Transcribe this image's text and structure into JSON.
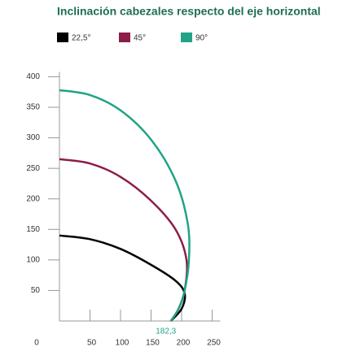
{
  "chart_data": {
    "type": "line",
    "title": "Inclinación cabezales respecto del eje horizontal",
    "series": [
      {
        "name": "22,5°",
        "color": "#000000",
        "x": [
          0,
          50,
          100,
          150,
          190,
          205,
          200,
          182.3
        ],
        "values": [
          140,
          134,
          118,
          92,
          66,
          45,
          20,
          0
        ]
      },
      {
        "name": "45°",
        "color": "#8c1d4b",
        "x": [
          0,
          50,
          100,
          150,
          190,
          208,
          205,
          195,
          182.3
        ],
        "values": [
          265,
          258,
          236,
          197,
          150,
          100,
          50,
          20,
          0
        ]
      },
      {
        "name": "90°",
        "color": "#20a386",
        "x": [
          0,
          50,
          100,
          150,
          190,
          210,
          212,
          205,
          195,
          182.3
        ],
        "values": [
          378,
          370,
          345,
          297,
          230,
          160,
          100,
          50,
          20,
          0
        ]
      }
    ],
    "xlim": [
      0,
      250
    ],
    "xticks": [
      0,
      50,
      100,
      150,
      200,
      250
    ],
    "ylim": [
      0,
      400
    ],
    "yticks": [
      50,
      100,
      150,
      200,
      250,
      300,
      350,
      400
    ],
    "annotation": {
      "text": "182,3",
      "x": 182.3,
      "color": "#20a386"
    }
  }
}
